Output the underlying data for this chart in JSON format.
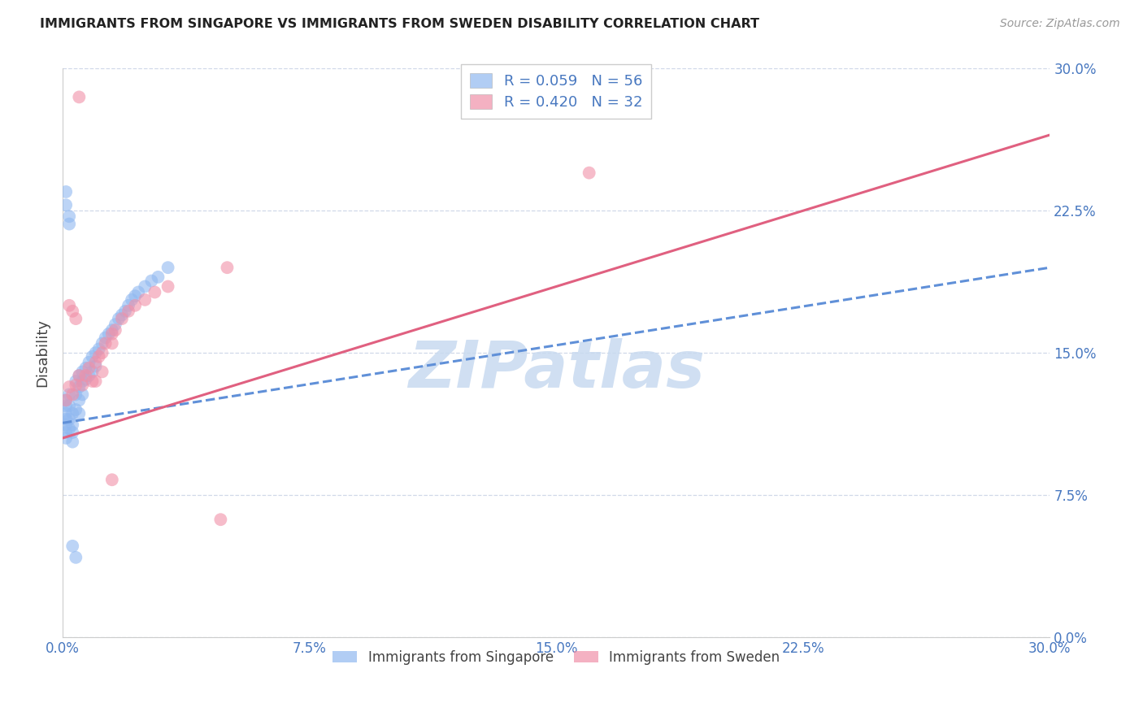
{
  "title": "IMMIGRANTS FROM SINGAPORE VS IMMIGRANTS FROM SWEDEN DISABILITY CORRELATION CHART",
  "source": "Source: ZipAtlas.com",
  "ylabel": "Disability",
  "ytick_labels": [
    "0.0%",
    "7.5%",
    "15.0%",
    "22.5%",
    "30.0%"
  ],
  "ytick_values": [
    0.0,
    0.075,
    0.15,
    0.225,
    0.3
  ],
  "xtick_labels": [
    "0.0%",
    "7.5%",
    "15.0%",
    "22.5%",
    "30.0%"
  ],
  "xtick_values": [
    0.0,
    0.075,
    0.15,
    0.225,
    0.3
  ],
  "xlim": [
    0.0,
    0.3
  ],
  "ylim": [
    0.0,
    0.3
  ],
  "singapore_color": "#90b8f0",
  "sweden_color": "#f090a8",
  "singapore_line_color": "#6090d8",
  "sweden_line_color": "#e06080",
  "watermark": "ZIPatlas",
  "watermark_color": "#c8daf0",
  "legend_r1": "R = 0.059   N = 56",
  "legend_r2": "R = 0.420   N = 32",
  "legend_label1": "Immigrants from Singapore",
  "legend_label2": "Immigrants from Sweden",
  "title_fontsize": 11.5,
  "axis_label_color": "#4878c0",
  "tick_label_color": "#4878c0",
  "grid_color": "#d0d8e8",
  "singapore_x": [
    0.001,
    0.001,
    0.001,
    0.001,
    0.001,
    0.001,
    0.001,
    0.002,
    0.002,
    0.002,
    0.002,
    0.003,
    0.003,
    0.003,
    0.003,
    0.004,
    0.004,
    0.004,
    0.005,
    0.005,
    0.005,
    0.005,
    0.006,
    0.006,
    0.006,
    0.007,
    0.007,
    0.008,
    0.008,
    0.009,
    0.009,
    0.01,
    0.01,
    0.011,
    0.012,
    0.013,
    0.014,
    0.015,
    0.016,
    0.017,
    0.018,
    0.019,
    0.02,
    0.021,
    0.022,
    0.023,
    0.025,
    0.027,
    0.029,
    0.032,
    0.001,
    0.001,
    0.002,
    0.002,
    0.003,
    0.004
  ],
  "singapore_y": [
    0.125,
    0.122,
    0.118,
    0.115,
    0.112,
    0.108,
    0.105,
    0.128,
    0.122,
    0.115,
    0.11,
    0.118,
    0.112,
    0.108,
    0.103,
    0.135,
    0.128,
    0.12,
    0.138,
    0.132,
    0.125,
    0.118,
    0.14,
    0.135,
    0.128,
    0.142,
    0.136,
    0.145,
    0.138,
    0.148,
    0.14,
    0.15,
    0.143,
    0.152,
    0.155,
    0.158,
    0.16,
    0.162,
    0.165,
    0.168,
    0.17,
    0.172,
    0.175,
    0.178,
    0.18,
    0.182,
    0.185,
    0.188,
    0.19,
    0.195,
    0.235,
    0.228,
    0.222,
    0.218,
    0.048,
    0.042
  ],
  "sweden_x": [
    0.001,
    0.002,
    0.003,
    0.004,
    0.005,
    0.006,
    0.007,
    0.008,
    0.009,
    0.01,
    0.011,
    0.012,
    0.013,
    0.015,
    0.016,
    0.018,
    0.02,
    0.022,
    0.025,
    0.028,
    0.032,
    0.05,
    0.01,
    0.012,
    0.015,
    0.002,
    0.003,
    0.004,
    0.015,
    0.16,
    0.048,
    0.005
  ],
  "sweden_y": [
    0.125,
    0.132,
    0.128,
    0.133,
    0.138,
    0.133,
    0.138,
    0.142,
    0.135,
    0.145,
    0.148,
    0.15,
    0.155,
    0.16,
    0.162,
    0.168,
    0.172,
    0.175,
    0.178,
    0.182,
    0.185,
    0.195,
    0.135,
    0.14,
    0.155,
    0.175,
    0.172,
    0.168,
    0.083,
    0.245,
    0.062,
    0.285
  ],
  "sg_trend_x": [
    0.0,
    0.3
  ],
  "sg_trend_y": [
    0.113,
    0.195
  ],
  "sw_trend_x": [
    0.0,
    0.3
  ],
  "sw_trend_y": [
    0.105,
    0.265
  ]
}
